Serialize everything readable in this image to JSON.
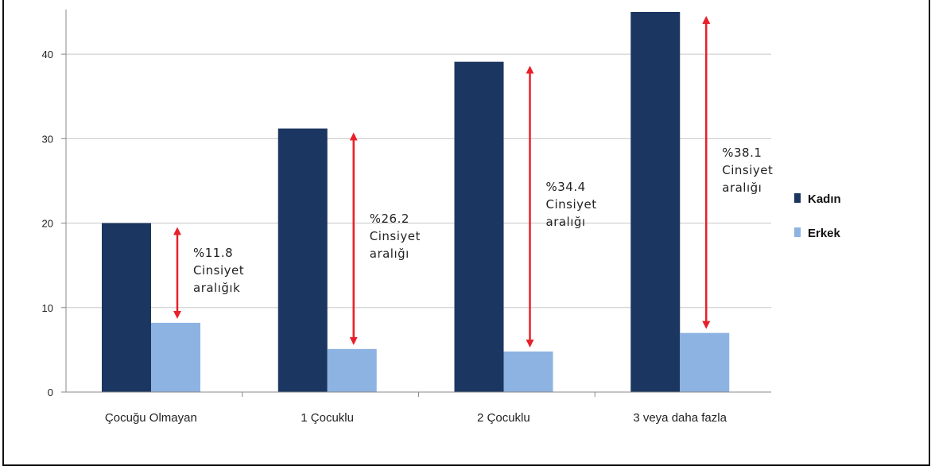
{
  "chart_data": {
    "type": "bar",
    "title": "",
    "xlabel": "",
    "ylabel": "",
    "ylim": [
      0,
      45
    ],
    "yticks": [
      0,
      10,
      20,
      30,
      40
    ],
    "grid": true,
    "legend_position": "right",
    "categories": [
      "Çocuğu Olmayan",
      "1 Çocuklu",
      "2 Çocuklu",
      "3 veya daha fazla"
    ],
    "series": [
      {
        "name": "Kadın",
        "color": "#1b3660",
        "values": [
          20.0,
          31.2,
          39.1,
          45.0
        ]
      },
      {
        "name": "Erkek",
        "color": "#8db3e2",
        "values": [
          8.2,
          5.1,
          4.8,
          7.0
        ]
      }
    ],
    "annotations": [
      {
        "lines": [
          "%11.8",
          "Cinsiyet",
          "aralığık"
        ]
      },
      {
        "lines": [
          "%26.2",
          "Cinsiyet",
          "aralığı"
        ]
      },
      {
        "lines": [
          "%34.4",
          "Cinsiyet",
          "aralığı"
        ]
      },
      {
        "lines": [
          "%38.1",
          "Cinsiyet",
          "aralığı"
        ]
      }
    ],
    "arrow_color": "#e8202a"
  }
}
